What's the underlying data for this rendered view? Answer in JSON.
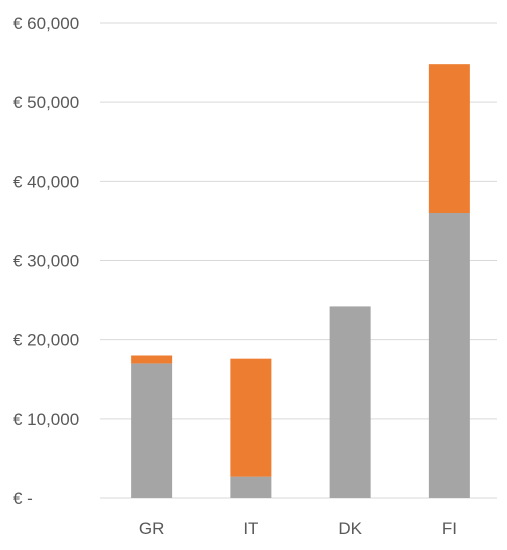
{
  "chart_data": {
    "type": "bar",
    "stacked": true,
    "categories": [
      "GR",
      "IT",
      "DK",
      "FI"
    ],
    "series": [
      {
        "color": "#a5a5a5",
        "values": [
          17000,
          2700,
          24200,
          36000
        ]
      },
      {
        "color": "#ed7d31",
        "values": [
          1000,
          14900,
          0,
          18800
        ]
      }
    ],
    "ylim": [
      0,
      60000
    ],
    "y_ticks": [
      {
        "value": 0,
        "label": "€ -"
      },
      {
        "value": 10000,
        "label": "€ 10,000"
      },
      {
        "value": 20000,
        "label": "€ 20,000"
      },
      {
        "value": 30000,
        "label": "€ 30,000"
      },
      {
        "value": 40000,
        "label": "€ 40,000"
      },
      {
        "value": 50000,
        "label": "€ 50,000"
      },
      {
        "value": 60000,
        "label": "€ 60,000"
      }
    ],
    "grid": true,
    "legend": "none",
    "title": "",
    "xlabel": "",
    "ylabel": ""
  }
}
